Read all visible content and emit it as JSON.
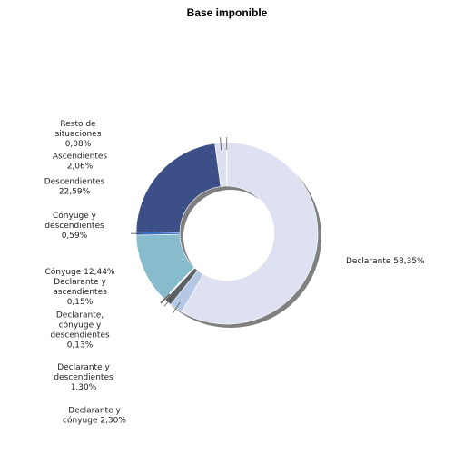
{
  "chart_data": {
    "type": "pie",
    "title": "Base imponible",
    "slices": [
      {
        "label": "Declarante 58,35%",
        "value": 58.35,
        "color": "#dde1f1"
      },
      {
        "label": "Declarante y cónyuge 2,30%",
        "value": 2.3,
        "color": "#b4c8e6"
      },
      {
        "label": "Declarante y descendientes 1,30%",
        "value": 1.3,
        "color": "#5c6166"
      },
      {
        "label": "Declarante, cónyuge y descendientes 0,13%",
        "value": 0.13,
        "color": "#8f9498"
      },
      {
        "label": "Declarante y ascendientes 0,15%",
        "value": 0.15,
        "color": "#6f7478"
      },
      {
        "label": "Cónyuge 12,44%",
        "value": 12.44,
        "color": "#86bccc"
      },
      {
        "label": "Cónyuge y descendientes 0,59%",
        "value": 0.59,
        "color": "#3f6fc4"
      },
      {
        "label": "Descendientes 22,59%",
        "value": 22.59,
        "color": "#3c4f86"
      },
      {
        "label": "Ascendientes 2,06%",
        "value": 2.06,
        "color": "#dcdff0"
      },
      {
        "label": "Resto de situaciones 0,08%",
        "value": 0.08,
        "color": "#9a9ea4"
      }
    ]
  }
}
